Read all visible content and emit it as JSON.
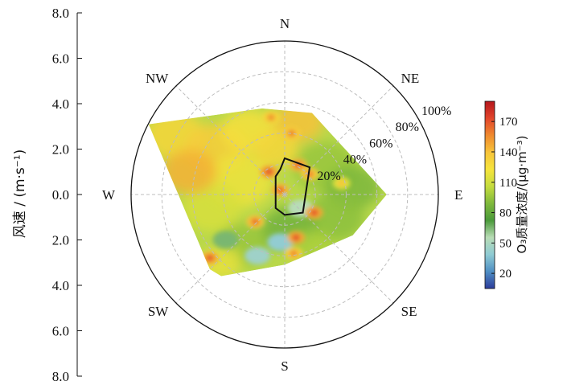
{
  "chart_data": {
    "type": "heatmap",
    "subtype": "polar-bivariate",
    "y_axis": {
      "label": "风速 / (m·s⁻¹)",
      "ticks": [
        "8.0",
        "6.0",
        "4.0",
        "2.0",
        "0.0",
        "2.0",
        "4.0",
        "6.0",
        "8.0"
      ],
      "range": [
        -8,
        8
      ]
    },
    "directions": [
      "N",
      "NE",
      "E",
      "SE",
      "S",
      "SW",
      "W",
      "NW"
    ],
    "ring_labels": [
      "20%",
      "40%",
      "60%",
      "80%",
      "100%"
    ],
    "colorbar": {
      "title": "O₃质量浓度/(μg·m⁻³)",
      "ticks": [
        "20",
        "50",
        "80",
        "110",
        "140",
        "170"
      ],
      "range": [
        5,
        190
      ],
      "stops": [
        "#2c3c9a",
        "#4f8fc4",
        "#8fcbd3",
        "#b8dcb5",
        "#4a9a3a",
        "#7fb93c",
        "#c5dc3e",
        "#f6e43c",
        "#f7c43a",
        "#ef8a2e",
        "#e2452b",
        "#b5161c"
      ]
    },
    "field_extent_ms": [
      [
        -6.0,
        3.1
      ],
      [
        -1.0,
        3.8
      ],
      [
        1.2,
        3.6
      ],
      [
        4.5,
        0.0
      ],
      [
        3.0,
        -1.8
      ],
      [
        0.0,
        -3.1
      ],
      [
        -2.8,
        -3.6
      ],
      [
        -3.3,
        -3.3
      ]
    ],
    "hotspots_ms": [
      {
        "x": -0.6,
        "y": 3.4,
        "ug": 155
      },
      {
        "x": 0.3,
        "y": 2.7,
        "ug": 160
      },
      {
        "x": -0.7,
        "y": 1.0,
        "ug": 172
      },
      {
        "x": 0.6,
        "y": 1.3,
        "ug": 168
      },
      {
        "x": 1.1,
        "y": 0.9,
        "ug": 160
      },
      {
        "x": -0.2,
        "y": 0.2,
        "ug": 168
      },
      {
        "x": -1.3,
        "y": -1.2,
        "ug": 165
      },
      {
        "x": 1.3,
        "y": -0.8,
        "ug": 172
      },
      {
        "x": 0.5,
        "y": -1.9,
        "ug": 172
      },
      {
        "x": -3.3,
        "y": -2.8,
        "ug": 170
      },
      {
        "x": 0.4,
        "y": -2.6,
        "ug": 158
      },
      {
        "x": 2.5,
        "y": 0.5,
        "ug": 140
      }
    ],
    "lowspots_ms": [
      {
        "x": -0.2,
        "y": -2.1,
        "ug": 40
      },
      {
        "x": -1.2,
        "y": -2.7,
        "ug": 45
      },
      {
        "x": 0.7,
        "y": -0.6,
        "ug": 55
      },
      {
        "x": -2.6,
        "y": -2.0,
        "ug": 65
      }
    ],
    "contour_region_ms": [
      [
        0.0,
        1.6
      ],
      [
        1.1,
        1.2
      ],
      [
        0.8,
        -0.8
      ],
      [
        0.0,
        -0.9
      ],
      [
        -0.4,
        -0.6
      ],
      [
        -0.4,
        0.8
      ],
      [
        -0.2,
        1.1
      ]
    ]
  }
}
